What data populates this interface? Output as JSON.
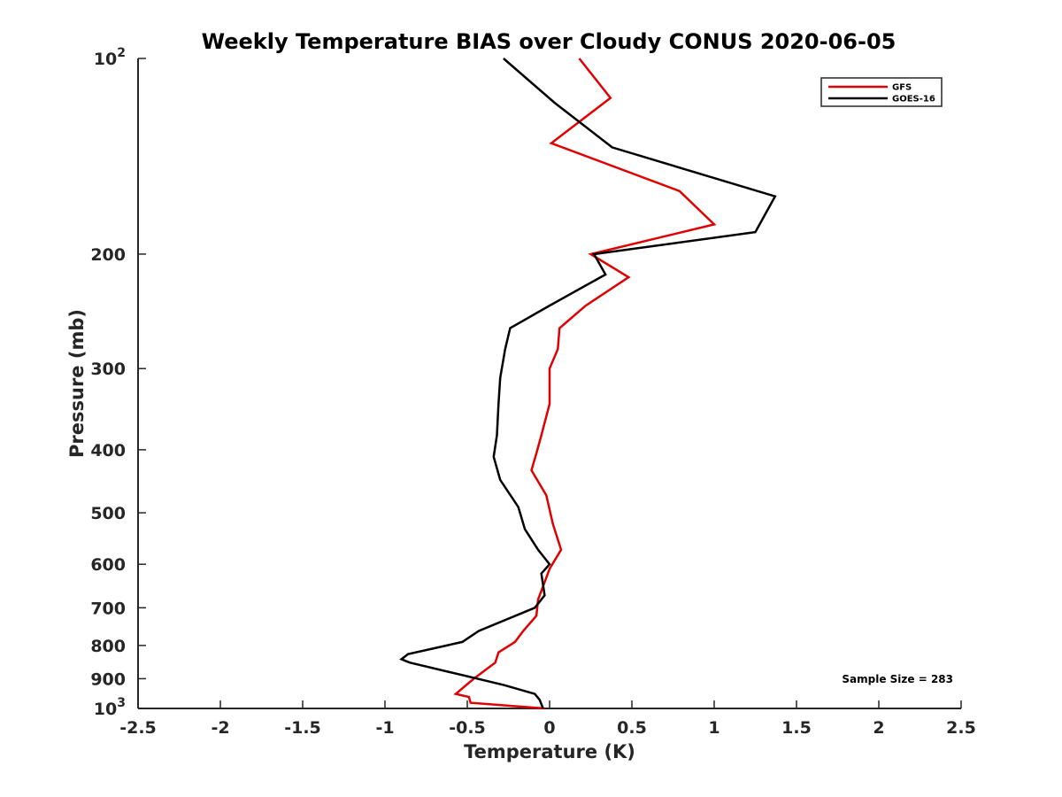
{
  "chart_data": {
    "type": "line",
    "title": "Weekly Temperature BIAS over Cloudy CONUS 2020-06-05",
    "xlabel": "Temperature (K)",
    "ylabel": "Pressure (mb)",
    "xlim": [
      -2.5,
      2.5
    ],
    "ylim": [
      1000,
      100
    ],
    "y_scale": "log",
    "y_reversed": true,
    "x_ticks": [
      "-2.5",
      "-2",
      "-1.5",
      "-1",
      "-0.5",
      "0",
      "0.5",
      "1",
      "1.5",
      "2",
      "2.5"
    ],
    "x_tick_values": [
      -2.5,
      -2,
      -1.5,
      -1,
      -0.5,
      0,
      0.5,
      1,
      1.5,
      2,
      2.5
    ],
    "y_ticks": [
      {
        "value": 100,
        "base": "10",
        "exp": "2"
      },
      {
        "value": 200,
        "label": "200"
      },
      {
        "value": 300,
        "label": "300"
      },
      {
        "value": 400,
        "label": "400"
      },
      {
        "value": 500,
        "label": "500"
      },
      {
        "value": 600,
        "label": "600"
      },
      {
        "value": 700,
        "label": "700"
      },
      {
        "value": 800,
        "label": "800"
      },
      {
        "value": 900,
        "label": "900"
      },
      {
        "value": 1000,
        "base": "10",
        "exp": "3"
      }
    ],
    "grid": false,
    "legend_position": "top-right",
    "annotation": "Sample Size = 283",
    "series": [
      {
        "name": "GFS",
        "color": "#e00000",
        "points": [
          [
            0.18,
            100
          ],
          [
            0.37,
            115
          ],
          [
            0.01,
            135
          ],
          [
            0.79,
            160
          ],
          [
            1.0,
            180
          ],
          [
            0.25,
            200
          ],
          [
            0.48,
            217
          ],
          [
            0.22,
            240
          ],
          [
            0.06,
            260
          ],
          [
            0.05,
            280
          ],
          [
            0.0,
            300
          ],
          [
            0.0,
            340
          ],
          [
            -0.05,
            380
          ],
          [
            -0.08,
            405
          ],
          [
            -0.11,
            430
          ],
          [
            -0.02,
            470
          ],
          [
            0.02,
            520
          ],
          [
            0.07,
            570
          ],
          [
            0.0,
            610
          ],
          [
            -0.07,
            680
          ],
          [
            -0.08,
            720
          ],
          [
            -0.16,
            760
          ],
          [
            -0.21,
            790
          ],
          [
            -0.31,
            820
          ],
          [
            -0.33,
            850
          ],
          [
            -0.46,
            900
          ],
          [
            -0.57,
            950
          ],
          [
            -0.49,
            960
          ],
          [
            -0.48,
            980
          ],
          [
            -0.03,
            1000
          ]
        ]
      },
      {
        "name": "GOES-16",
        "color": "#000000",
        "points": [
          [
            -0.28,
            100
          ],
          [
            0.03,
            117
          ],
          [
            0.38,
            137
          ],
          [
            1.37,
            163
          ],
          [
            1.25,
            185
          ],
          [
            0.27,
            200
          ],
          [
            0.34,
            215
          ],
          [
            0.0,
            240
          ],
          [
            -0.24,
            260
          ],
          [
            -0.27,
            280
          ],
          [
            -0.3,
            310
          ],
          [
            -0.31,
            340
          ],
          [
            -0.32,
            380
          ],
          [
            -0.34,
            410
          ],
          [
            -0.3,
            445
          ],
          [
            -0.19,
            490
          ],
          [
            -0.15,
            530
          ],
          [
            -0.07,
            570
          ],
          [
            0.0,
            600
          ],
          [
            -0.05,
            620
          ],
          [
            -0.03,
            670
          ],
          [
            -0.09,
            700
          ],
          [
            -0.43,
            760
          ],
          [
            -0.53,
            790
          ],
          [
            -0.86,
            825
          ],
          [
            -0.9,
            840
          ],
          [
            -0.85,
            850
          ],
          [
            -0.28,
            920
          ],
          [
            -0.09,
            950
          ],
          [
            -0.06,
            970
          ],
          [
            -0.04,
            1000
          ]
        ]
      }
    ]
  }
}
